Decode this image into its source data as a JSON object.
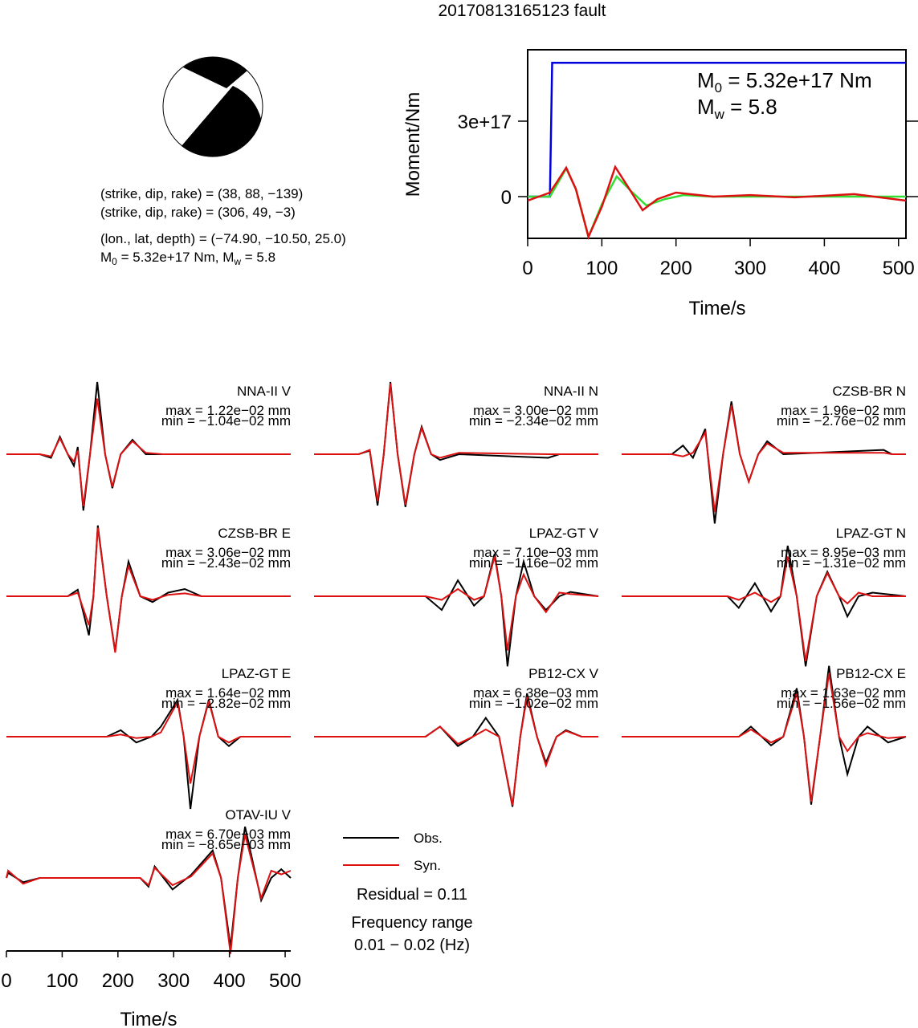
{
  "title": "20170813165123 fault",
  "source": {
    "focal_lines": [
      "(strike, dip, rake) = (38, 88, −139)",
      "(strike, dip, rake) = (306, 49, −3)"
    ],
    "location": "(lon., lat, depth) = (−74.90, −10.50, 25.0)",
    "moment_line": [
      "M",
      "0",
      " = 5.32e+17 Nm, M",
      "w",
      " = 5.8"
    ]
  },
  "chart_data": [
    {
      "type": "line",
      "xlabel": "Time/s",
      "ylabel": "Moment/Nm",
      "xlim": [
        0,
        510
      ],
      "ylim": [
        -1.66e+17,
        5.84e+17
      ],
      "xticks": [
        0,
        100,
        200,
        300,
        400,
        500
      ],
      "yticks": [
        0,
        {
          "value": 3e+17,
          "label": "3e+17"
        }
      ],
      "annotations": [
        [
          "M",
          "0",
          " = 5.32e+17 Nm"
        ],
        [
          "M",
          "w",
          " = 5.8"
        ]
      ],
      "series": [
        {
          "color": "#0000dd",
          "x": [
            0,
            30,
            33,
            510
          ],
          "values": [
            0,
            0,
            5.32e+17,
            5.32e+17
          ]
        },
        {
          "color": "#33dd33",
          "x": [
            0,
            30,
            40,
            52,
            65,
            82,
            100,
            120,
            140,
            160,
            185,
            210,
            250,
            510
          ],
          "values": [
            0,
            0,
            5e+16,
            1.12e+17,
            3e+16,
            -1.6e+17,
            -3e+16,
            8e+16,
            2e+16,
            -3.5e+16,
            -1e+16,
            6000000000000000.0,
            0,
            0
          ]
        },
        {
          "color": "#dd1111",
          "x": [
            0,
            30,
            40,
            52,
            65,
            82,
            100,
            118,
            135,
            155,
            175,
            200,
            250,
            300,
            360,
            440,
            510
          ],
          "values": [
            -1.6e+16,
            1.6e+16,
            6e+16,
            1.15e+17,
            3e+16,
            -1.6e+17,
            -4e+16,
            1.18e+17,
            4e+16,
            -5.4e+16,
            -1e+16,
            1.6e+16,
            0,
            6000000000000000.0,
            -3000000000000000.0,
            1e+16,
            -1.6e+16
          ]
        }
      ]
    },
    {
      "type": "waveforms",
      "xlabel": "Time/s",
      "xlim": [
        0,
        510
      ],
      "xticks": [
        0,
        100,
        200,
        300,
        400,
        500
      ],
      "series": [
        {
          "name": "Obs.",
          "color": "#000000"
        },
        {
          "name": "Syn.",
          "color": "#dd1111"
        }
      ],
      "residual": "Residual = 0.11",
      "frequency_title": "Frequency range",
      "frequency_range": "0.01 − 0.02 (Hz)",
      "panels": [
        {
          "name": "NNA-II V",
          "max": "max = 1.22e−02 mm",
          "min": "min = −1.04e−02 mm",
          "t": [
            0,
            60,
            80,
            96,
            110,
            121,
            128,
            138,
            150,
            163,
            177,
            190,
            205,
            226,
            250,
            280,
            510
          ],
          "obs": [
            0,
            0,
            -0.05,
            0.24,
            0,
            -0.16,
            0.1,
            -0.78,
            0,
            1.0,
            0,
            -0.47,
            0,
            0.2,
            0,
            0,
            0
          ],
          "syn": [
            0,
            0,
            -0.03,
            0.22,
            0,
            -0.1,
            0.05,
            -0.72,
            0,
            0.77,
            0,
            -0.45,
            0,
            0.18,
            0.02,
            0,
            0
          ]
        },
        {
          "name": "NNA-II N",
          "max": "max = 3.00e−02 mm",
          "min": "min = −2.34e−02 mm",
          "t": [
            0,
            80,
            100,
            114,
            125,
            137,
            150,
            164,
            180,
            193,
            210,
            226,
            260,
            420,
            440,
            510
          ],
          "obs": [
            0,
            0,
            0.05,
            -0.71,
            0,
            1.0,
            0,
            -0.73,
            0,
            0.38,
            0,
            -0.08,
            0,
            -0.05,
            0,
            0
          ],
          "syn": [
            0,
            0,
            0.06,
            -0.65,
            0,
            0.98,
            0,
            -0.7,
            0,
            0.36,
            0,
            -0.05,
            0.02,
            0,
            0,
            0
          ]
        },
        {
          "name": "CZSB-BR N",
          "max": "max = 1.96e−02 mm",
          "min": "min = −2.76e−02 mm",
          "t": [
            0,
            90,
            110,
            128,
            150,
            167,
            182,
            197,
            212,
            228,
            245,
            261,
            290,
            470,
            485,
            510
          ],
          "obs": [
            0,
            0,
            0.12,
            -0.05,
            0.35,
            -0.96,
            0,
            0.73,
            0,
            -0.38,
            0,
            0.18,
            0,
            0.06,
            0,
            0
          ],
          "syn": [
            0,
            0,
            -0.03,
            0.02,
            0.3,
            -0.8,
            0,
            0.68,
            0,
            -0.38,
            0,
            0.15,
            0.02,
            0.02,
            0,
            0
          ]
        },
        {
          "name": "CZSB-BR E",
          "max": "max = 3.06e−02 mm",
          "min": "min = −2.43e−02 mm",
          "t": [
            0,
            110,
            128,
            148,
            156,
            164,
            180,
            195,
            207,
            219,
            240,
            262,
            290,
            320,
            350,
            510
          ],
          "obs": [
            0,
            0,
            0.09,
            -0.54,
            0,
            0.98,
            0,
            -0.76,
            0,
            0.48,
            0,
            -0.08,
            0.05,
            0.1,
            0,
            0
          ],
          "syn": [
            0,
            0,
            0.05,
            -0.4,
            0,
            0.95,
            0,
            -0.78,
            0,
            0.42,
            0,
            -0.05,
            0.02,
            0.04,
            0,
            0
          ]
        },
        {
          "name": "LPAZ-GT V",
          "max": "max = 7.10e−03 mm",
          "min": "min = −1.16e−02 mm",
          "t": [
            0,
            200,
            229,
            258,
            287,
            305,
            324,
            336,
            347,
            362,
            376,
            395,
            416,
            440,
            460,
            510
          ],
          "obs": [
            0,
            0,
            -0.19,
            0.22,
            -0.13,
            0,
            0.59,
            0,
            -0.97,
            0,
            0.48,
            0,
            -0.19,
            0,
            0.06,
            0
          ],
          "syn": [
            0,
            0,
            -0.05,
            0.1,
            -0.05,
            0,
            0.55,
            0,
            -0.75,
            0,
            0.3,
            0,
            -0.22,
            0.05,
            0.03,
            0
          ]
        },
        {
          "name": "LPAZ-GT N",
          "max": "max = 8.95e−03 mm",
          "min": "min = −1.31e−02 mm",
          "t": [
            0,
            190,
            210,
            239,
            268,
            285,
            298,
            314,
            330,
            350,
            369,
            390,
            405,
            425,
            450,
            510
          ],
          "obs": [
            0,
            0,
            -0.16,
            0.18,
            -0.21,
            0,
            0.7,
            0,
            -0.97,
            0,
            0.34,
            0,
            -0.28,
            0,
            0.05,
            0
          ],
          "syn": [
            0,
            0,
            -0.05,
            0.05,
            -0.08,
            0,
            0.55,
            0,
            -0.9,
            0,
            0.32,
            0,
            -0.1,
            0.05,
            0,
            0
          ]
        },
        {
          "name": "LPAZ-GT E",
          "max": "max = 1.64e−02 mm",
          "min": "min = −2.82e−02 mm",
          "t": [
            0,
            180,
            205,
            233,
            260,
            277,
            307,
            318,
            330,
            346,
            363,
            380,
            399,
            420,
            510
          ],
          "obs": [
            0,
            0,
            0.09,
            -0.08,
            0,
            0.14,
            0.51,
            0,
            -1.0,
            0,
            0.51,
            0,
            -0.13,
            0,
            0
          ],
          "syn": [
            0,
            0,
            0.03,
            -0.02,
            0,
            0.06,
            0.48,
            0,
            -0.65,
            0,
            0.49,
            0,
            -0.08,
            0,
            0
          ]
        },
        {
          "name": "PB12-CX V",
          "max": "max = 6.38e−03 mm",
          "min": "min = −1.02e−02 mm",
          "t": [
            0,
            200,
            226,
            258,
            285,
            308,
            332,
            356,
            370,
            382,
            400,
            416,
            435,
            452,
            480,
            510
          ],
          "obs": [
            0,
            0,
            0.14,
            -0.13,
            0,
            0.26,
            0,
            -0.97,
            0,
            0.6,
            0,
            -0.36,
            0,
            0.09,
            0,
            0
          ],
          "syn": [
            0,
            0,
            0.14,
            -0.1,
            0,
            0.1,
            0,
            -0.95,
            0,
            0.55,
            0,
            -0.4,
            0,
            0.08,
            0,
            0
          ]
        },
        {
          "name": "PB12-CX E",
          "max": "max = 1.63e−02 mm",
          "min": "min = −1.56e−02 mm",
          "t": [
            0,
            210,
            232,
            268,
            290,
            314,
            327,
            340,
            356,
            372,
            390,
            405,
            425,
            441,
            478,
            510
          ],
          "obs": [
            0,
            0,
            0.14,
            -0.12,
            0,
            0.67,
            0,
            -0.94,
            0,
            0.98,
            0,
            -0.52,
            0,
            0.14,
            -0.08,
            0
          ],
          "syn": [
            0,
            0,
            0.1,
            -0.08,
            0,
            0.6,
            0,
            -0.9,
            0,
            0.88,
            0,
            -0.2,
            0,
            0.05,
            -0.02,
            0
          ]
        },
        {
          "name": "OTAV-IU V",
          "max": "max = 6.70e−03 mm",
          "min": "min = −8.65e−03 mm",
          "t": [
            0,
            3,
            30,
            60,
            240,
            255,
            266,
            298,
            331,
            370,
            385,
            402,
            415,
            428,
            457,
            475,
            493,
            510
          ],
          "obs": [
            0,
            0.07,
            -0.06,
            0,
            0,
            -0.12,
            0.16,
            -0.16,
            0.04,
            0.38,
            0,
            -0.96,
            0,
            0.71,
            -0.31,
            0,
            0.12,
            0
          ],
          "syn": [
            0,
            0.1,
            -0.08,
            0,
            0,
            -0.1,
            0.14,
            -0.1,
            0.02,
            0.34,
            0,
            -1.05,
            0,
            0.6,
            -0.28,
            0.1,
            0.05,
            0.1
          ]
        }
      ]
    }
  ]
}
